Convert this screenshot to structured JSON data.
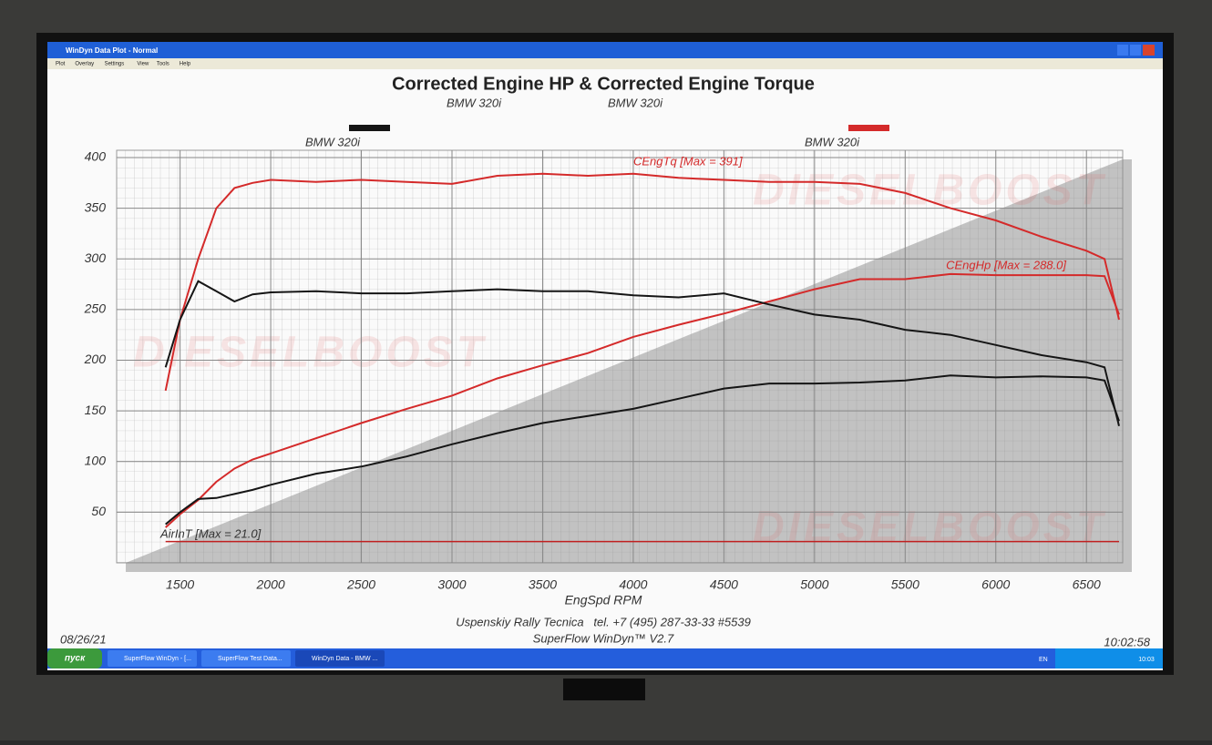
{
  "window": {
    "title": "WinDyn Data Plot - Normal",
    "menu": [
      "Plot",
      "Overlay",
      "Settings",
      "View",
      "Tools",
      "Help"
    ]
  },
  "chart_data": {
    "type": "line",
    "title": "Corrected Engine HP & Corrected Engine Torque",
    "subtitles": [
      "BMW 320i",
      "BMW 320i"
    ],
    "legend": [
      {
        "label": "BMW 320i",
        "color": "#151515"
      },
      {
        "label": "BMW 320i",
        "color": "#d42a2a"
      }
    ],
    "watermark": "DIESELBOOST",
    "x_label": "EngSpd RPM",
    "x": [
      1420,
      1500,
      1600,
      1700,
      1800,
      1900,
      2000,
      2250,
      2500,
      2750,
      3000,
      3250,
      3500,
      3750,
      4000,
      4250,
      4500,
      4750,
      5000,
      5250,
      5500,
      5750,
      6000,
      6250,
      6500,
      6600,
      6680
    ],
    "series": [
      {
        "name": "CEngTq [Max = 391]",
        "color": "#d42a2a",
        "values": [
          170,
          240,
          300,
          350,
          370,
          375,
          378,
          376,
          378,
          376,
          374,
          382,
          384,
          382,
          384,
          380,
          378,
          376,
          376,
          374,
          365,
          350,
          338,
          322,
          308,
          300,
          240
        ]
      },
      {
        "name": "CEngHp [Max = 288.0]",
        "color": "#d42a2a",
        "values": [
          35,
          48,
          62,
          80,
          93,
          102,
          108,
          123,
          138,
          152,
          165,
          182,
          195,
          207,
          223,
          235,
          246,
          258,
          270,
          280,
          280,
          285,
          284,
          284,
          284,
          283,
          245
        ]
      },
      {
        "color": "#151515",
        "values": [
          193,
          240,
          278,
          268,
          258,
          265,
          267,
          268,
          266,
          266,
          268,
          270,
          268,
          268,
          264,
          262,
          266,
          255,
          245,
          240,
          230,
          225,
          215,
          205,
          198,
          193,
          135
        ]
      },
      {
        "color": "#151515",
        "values": [
          38,
          50,
          63,
          64,
          68,
          72,
          77,
          88,
          95,
          105,
          117,
          128,
          138,
          145,
          152,
          162,
          172,
          177,
          177,
          178,
          180,
          185,
          183,
          184,
          183,
          180,
          140
        ]
      },
      {
        "name": "AirInT [Max = 21.0]",
        "color": "#c02020",
        "values": [
          21,
          21,
          21,
          21,
          21,
          21,
          21,
          21,
          21,
          21,
          21,
          21,
          21,
          21,
          21,
          21,
          21,
          21,
          21,
          21,
          21,
          21,
          21,
          21,
          21,
          21,
          21
        ]
      }
    ],
    "xlim": [
      1150,
      6700
    ],
    "xticks": [
      1500,
      2000,
      2500,
      3000,
      3500,
      4000,
      4500,
      5000,
      5500,
      6000,
      6500
    ],
    "ylim": [
      0,
      400
    ],
    "yticks": [
      50,
      100,
      150,
      200,
      250,
      300,
      350,
      400
    ],
    "grid": true
  },
  "footer": {
    "date": "08/26/21",
    "company": "Uspenskiy Rally Tecnica   tel. +7 (495) 287-33-33 #5539",
    "software": "SuperFlow WinDyn™ V2.7",
    "time": "10:02:58"
  },
  "taskbar": {
    "start": "пуск",
    "items": [
      "SuperFlow WinDyn - [...",
      "SuperFlow Test Data...",
      "WinDyn Data - BMW ..."
    ],
    "lang": "EN",
    "clock": "10:03"
  }
}
